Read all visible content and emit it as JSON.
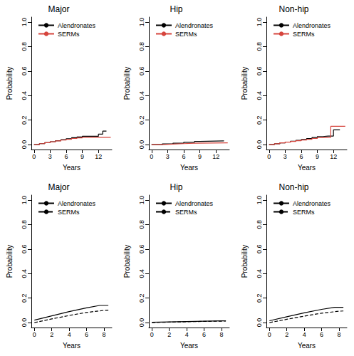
{
  "chart_data": [
    {
      "type": "step",
      "title": "Major",
      "x_label": "Years",
      "y_label": "Probability",
      "xlim": [
        -0.5,
        14.5
      ],
      "xticks": [
        0,
        3,
        6,
        9,
        12
      ],
      "ylim": [
        -0.04,
        1.04
      ],
      "yticks": [
        {
          "value": 0,
          "label": "0.0"
        },
        {
          "value": 0.2,
          "label": "0.2"
        },
        {
          "value": 0.4,
          "label": "0.4"
        },
        {
          "value": 0.6,
          "label": "0.6"
        },
        {
          "value": 0.8,
          "label": "0.8"
        },
        {
          "value": 1,
          "label": "1.0"
        }
      ],
      "grid": false,
      "legend": "top-left",
      "series": [
        {
          "name": "Alendronates",
          "color": "#000000",
          "line_style": "solid",
          "x": [
            0,
            1,
            2,
            3,
            4,
            5,
            6,
            7,
            8,
            9,
            10,
            11,
            12,
            12.8,
            13.5
          ],
          "values": [
            0,
            0.008,
            0.016,
            0.024,
            0.032,
            0.04,
            0.048,
            0.056,
            0.062,
            0.068,
            0.068,
            0.068,
            0.085,
            0.11,
            0.11
          ]
        },
        {
          "name": "SERMs",
          "color": "#d6453d",
          "line_style": "solid",
          "x": [
            0,
            1,
            2,
            3,
            4,
            5,
            6,
            7,
            8,
            9,
            10,
            14.3
          ],
          "values": [
            0,
            0.008,
            0.016,
            0.023,
            0.03,
            0.037,
            0.044,
            0.05,
            0.055,
            0.06,
            0.06,
            0.06
          ]
        }
      ]
    },
    {
      "type": "step",
      "title": "Hip",
      "x_label": "Years",
      "y_label": "Probability",
      "xlim": [
        -0.5,
        14.5
      ],
      "xticks": [
        0,
        3,
        6,
        9,
        12
      ],
      "ylim": [
        -0.04,
        1.04
      ],
      "yticks": [
        {
          "value": 0,
          "label": "0.0"
        },
        {
          "value": 0.2,
          "label": "0.2"
        },
        {
          "value": 0.4,
          "label": "0.4"
        },
        {
          "value": 0.6,
          "label": "0.6"
        },
        {
          "value": 0.8,
          "label": "0.8"
        },
        {
          "value": 1,
          "label": "1.0"
        }
      ],
      "grid": false,
      "legend": "top-left",
      "series": [
        {
          "name": "Alendronates",
          "color": "#000000",
          "line_style": "solid",
          "x": [
            0,
            2,
            4,
            6,
            8,
            9,
            13.5
          ],
          "values": [
            0,
            0.006,
            0.012,
            0.019,
            0.026,
            0.03,
            0.03
          ]
        },
        {
          "name": "SERMs",
          "color": "#d6453d",
          "line_style": "solid",
          "x": [
            0,
            2,
            4,
            6,
            8,
            14.2
          ],
          "values": [
            0,
            0.004,
            0.008,
            0.012,
            0.015,
            0.015
          ]
        }
      ]
    },
    {
      "type": "step",
      "title": "Non-hip",
      "x_label": "Years",
      "y_label": "Probability",
      "xlim": [
        -0.5,
        14.5
      ],
      "xticks": [
        0,
        3,
        6,
        9,
        12
      ],
      "ylim": [
        -0.04,
        1.04
      ],
      "yticks": [
        {
          "value": 0,
          "label": "0.0"
        },
        {
          "value": 0.2,
          "label": "0.2"
        },
        {
          "value": 0.4,
          "label": "0.4"
        },
        {
          "value": 0.6,
          "label": "0.6"
        },
        {
          "value": 0.8,
          "label": "0.8"
        },
        {
          "value": 1,
          "label": "1.0"
        }
      ],
      "grid": false,
      "legend": "top-left",
      "series": [
        {
          "name": "Alendronates",
          "color": "#000000",
          "line_style": "solid",
          "x": [
            0,
            1,
            2,
            3,
            4,
            5,
            6,
            7,
            8,
            9,
            10,
            11,
            12,
            13.2
          ],
          "values": [
            0,
            0.007,
            0.014,
            0.021,
            0.028,
            0.035,
            0.042,
            0.05,
            0.058,
            0.066,
            0.07,
            0.07,
            0.12,
            0.12
          ]
        },
        {
          "name": "SERMs",
          "color": "#d6453d",
          "line_style": "solid",
          "x": [
            0,
            1,
            2,
            3,
            4,
            5,
            6,
            7,
            8,
            9,
            10,
            11.5,
            14.2
          ],
          "values": [
            0,
            0.007,
            0.014,
            0.02,
            0.026,
            0.032,
            0.038,
            0.044,
            0.05,
            0.056,
            0.06,
            0.15,
            0.15
          ]
        }
      ]
    },
    {
      "type": "line",
      "title": "Major",
      "x_label": "Years",
      "y_label": "Probability",
      "xlim": [
        -0.35,
        8.9
      ],
      "xticks": [
        0,
        2,
        4,
        6,
        8
      ],
      "ylim": [
        -0.04,
        1.04
      ],
      "yticks": [
        {
          "value": 0,
          "label": "0.0"
        },
        {
          "value": 0.2,
          "label": "0.2"
        },
        {
          "value": 0.4,
          "label": "0.4"
        },
        {
          "value": 0.6,
          "label": "0.6"
        },
        {
          "value": 0.8,
          "label": "0.8"
        },
        {
          "value": 1,
          "label": "1.0"
        }
      ],
      "grid": false,
      "legend": "top-left",
      "series": [
        {
          "name": "Alendronates",
          "color": "#000000",
          "line_style": "solid",
          "x": [
            0,
            2,
            4,
            6,
            7.5,
            8.5
          ],
          "values": [
            0.02,
            0.055,
            0.09,
            0.12,
            0.14,
            0.14
          ]
        },
        {
          "name": "SERMs",
          "color": "#000000",
          "line_style": "dashed",
          "x": [
            0,
            2,
            4,
            6,
            8,
            8.5
          ],
          "values": [
            0.0,
            0.03,
            0.058,
            0.083,
            0.1,
            0.102
          ]
        }
      ]
    },
    {
      "type": "line",
      "title": "Hip",
      "x_label": "Years",
      "y_label": "Probability",
      "xlim": [
        -0.35,
        8.9
      ],
      "xticks": [
        0,
        2,
        4,
        6,
        8
      ],
      "ylim": [
        -0.04,
        1.04
      ],
      "yticks": [
        {
          "value": 0,
          "label": "0.0"
        },
        {
          "value": 0.2,
          "label": "0.2"
        },
        {
          "value": 0.4,
          "label": "0.4"
        },
        {
          "value": 0.6,
          "label": "0.6"
        },
        {
          "value": 0.8,
          "label": "0.8"
        },
        {
          "value": 1,
          "label": "1.0"
        }
      ],
      "grid": false,
      "legend": "top-left",
      "series": [
        {
          "name": "Alendronates",
          "color": "#000000",
          "line_style": "solid",
          "x": [
            0,
            2,
            4,
            6,
            8,
            8.5
          ],
          "values": [
            0.003,
            0.006,
            0.009,
            0.012,
            0.015,
            0.015
          ]
        },
        {
          "name": "SERMs",
          "color": "#000000",
          "line_style": "dashed",
          "x": [
            0,
            2,
            4,
            6,
            8,
            8.5
          ],
          "values": [
            0.0,
            0.004,
            0.007,
            0.01,
            0.012,
            0.013
          ]
        }
      ]
    },
    {
      "type": "line",
      "title": "Non-hip",
      "x_label": "Years",
      "y_label": "Probability",
      "xlim": [
        -0.35,
        8.9
      ],
      "xticks": [
        0,
        2,
        4,
        6,
        8
      ],
      "ylim": [
        -0.04,
        1.04
      ],
      "yticks": [
        {
          "value": 0,
          "label": "0.0"
        },
        {
          "value": 0.2,
          "label": "0.2"
        },
        {
          "value": 0.4,
          "label": "0.4"
        },
        {
          "value": 0.6,
          "label": "0.6"
        },
        {
          "value": 0.8,
          "label": "0.8"
        },
        {
          "value": 1,
          "label": "1.0"
        }
      ],
      "grid": false,
      "legend": "top-left",
      "series": [
        {
          "name": "Alendronates",
          "color": "#000000",
          "line_style": "solid",
          "x": [
            0,
            2,
            4,
            6,
            7.5,
            8.5
          ],
          "values": [
            0.015,
            0.048,
            0.08,
            0.108,
            0.125,
            0.125
          ]
        },
        {
          "name": "SERMs",
          "color": "#000000",
          "line_style": "dashed",
          "x": [
            0,
            2,
            4,
            6,
            8,
            8.5
          ],
          "values": [
            0.0,
            0.027,
            0.053,
            0.077,
            0.093,
            0.095
          ]
        }
      ]
    }
  ]
}
